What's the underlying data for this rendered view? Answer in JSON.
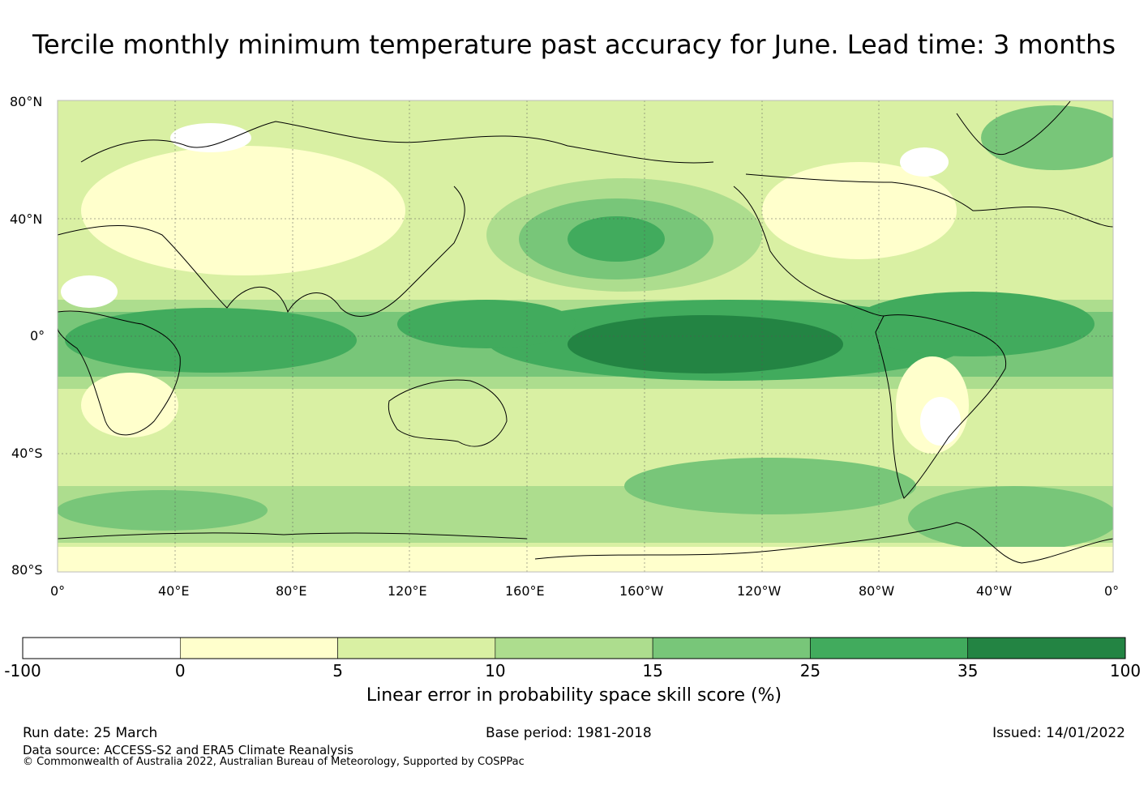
{
  "title": "Tercile monthly minimum temperature past accuracy for June. Lead time: 3 months",
  "map": {
    "lat_ticks": [
      "80°N",
      "40°N",
      "0°",
      "40°S",
      "80°S"
    ],
    "lon_ticks": [
      "0°",
      "40°E",
      "80°E",
      "120°E",
      "160°E",
      "160°W",
      "120°W",
      "80°W",
      "40°W",
      "0°"
    ],
    "ocean_base_color": "#d9f0a3",
    "coast_color": "#000000"
  },
  "colorbar": {
    "label": "Linear error in probability space skill score (%)",
    "ticks": [
      "-100",
      "0",
      "5",
      "10",
      "15",
      "25",
      "35",
      "100"
    ],
    "colors": [
      "#ffffff",
      "#ffffcc",
      "#d9f0a3",
      "#addd8e",
      "#78c679",
      "#41ab5d",
      "#238443"
    ]
  },
  "footer": {
    "run_date": "Run date: 25 March",
    "base_period": "Base period: 1981-2018",
    "issued": "Issued: 14/01/2022",
    "data_source": "Data source: ACCESS-S2 and ERA5 Climate Reanalysis",
    "copyright": "© Commonwealth of Australia 2022, Australian Bureau of Meteorology, Supported by COSPPac"
  }
}
